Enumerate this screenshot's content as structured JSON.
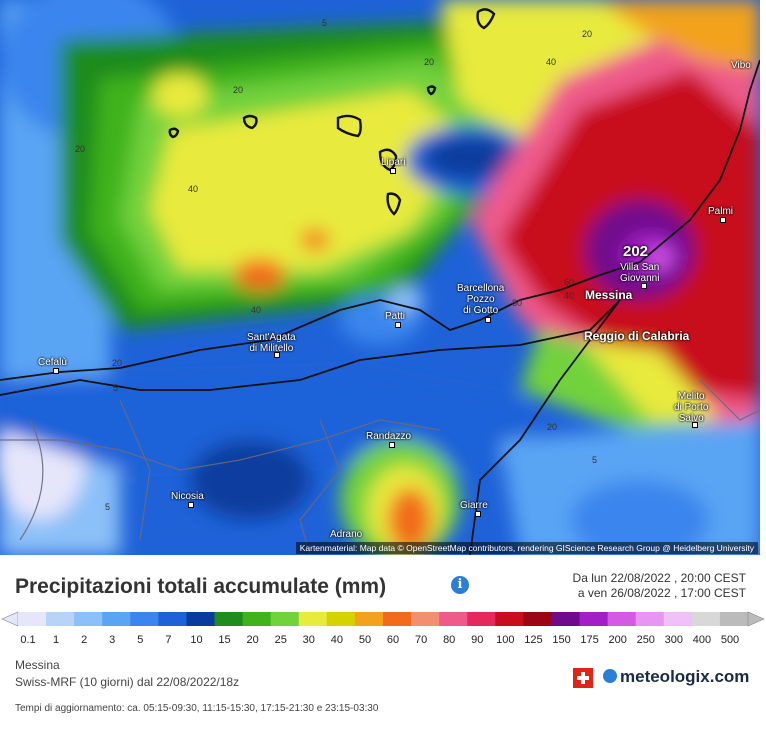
{
  "map": {
    "attribution": "Kartenmaterial: Map data © OpenStreetMap contributors, rendering GIScience Research Group @ Heidelberg University",
    "max_value": "202",
    "places": [
      {
        "name": "Vibo",
        "key": "vibo"
      },
      {
        "name": "Lipari",
        "key": "lipari"
      },
      {
        "name": "Palmi",
        "key": "palmi"
      },
      {
        "name": "Villa San\nGiovanni",
        "key": "villa"
      },
      {
        "name": "Barcellona\nPozzo\ndi Gotto",
        "key": "barcellona"
      },
      {
        "name": "Messina",
        "key": "messina"
      },
      {
        "name": "Reggio di Calabria",
        "key": "reggio"
      },
      {
        "name": "Sant'Agata\ndi Militello",
        "key": "santagata"
      },
      {
        "name": "Patti",
        "key": "patti"
      },
      {
        "name": "Cefalù",
        "key": "cefalu"
      },
      {
        "name": "Melito\ndi Porto\nSalvo",
        "key": "melito"
      },
      {
        "name": "Randazzo",
        "key": "randazzo"
      },
      {
        "name": "Nicosia",
        "key": "nicosia"
      },
      {
        "name": "Giarre",
        "key": "giarre"
      },
      {
        "name": "Adrano",
        "key": "adrano"
      }
    ],
    "contour_labels": [
      "5",
      "20",
      "40",
      "20",
      "20",
      "40",
      "40",
      "20",
      "20",
      "5",
      "80",
      "60",
      "40",
      "20",
      "5",
      "5"
    ]
  },
  "legend": {
    "title": "Precipitazioni totali accumulate (mm)",
    "info_icon": "info-icon",
    "period_from": "Da lun 22/08/2022 , 20:00 CEST",
    "period_to": "a ven 26/08/2022 , 17:00 CEST",
    "scale_colors": [
      "#e6e6fa",
      "#b7d3f8",
      "#8cc0f8",
      "#5aa4f4",
      "#3a86ee",
      "#1f62d8",
      "#0a3c9e",
      "#1f8c1c",
      "#3fb21c",
      "#72d23c",
      "#e8ea3c",
      "#d6d200",
      "#f2a21c",
      "#f26a1c",
      "#f09070",
      "#ee5a8a",
      "#e42a5c",
      "#c80e1c",
      "#9c0614",
      "#700a8c",
      "#a41ec8",
      "#d45ae6",
      "#e896f4",
      "#f0c0f8",
      "#d8d8d8",
      "#bbbbbb"
    ],
    "scale_values": [
      "0.1",
      "1",
      "2",
      "3",
      "5",
      "7",
      "10",
      "15",
      "20",
      "25",
      "30",
      "40",
      "50",
      "60",
      "70",
      "80",
      "90",
      "100",
      "125",
      "150",
      "175",
      "200",
      "250",
      "300",
      "400",
      "500"
    ],
    "location": "Messina",
    "model": "Swiss-MRF (10 giorni) dal 22/08/2022/18z",
    "update_times": "Tempi di aggiornamento: ca. 05:15-09:30, 11:15-15:30, 17:15-21:30 e 23:15-03:30",
    "brand": "meteologix.com"
  }
}
